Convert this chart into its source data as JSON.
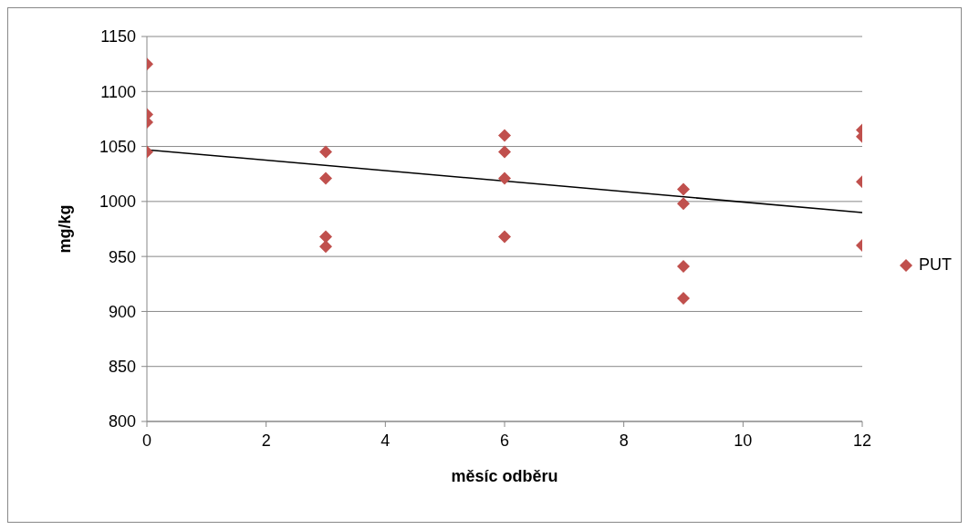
{
  "chart_data": {
    "type": "scatter",
    "xlabel": "měsíc odběru",
    "ylabel": "mg/kg",
    "marker": "diamond",
    "grid": "y",
    "legend": "right",
    "xlim": [
      0,
      12
    ],
    "xticks": [
      0,
      2,
      4,
      6,
      8,
      10,
      12
    ],
    "ylim": [
      800,
      1150
    ],
    "yticks": [
      800,
      850,
      900,
      950,
      1000,
      1050,
      1100,
      1150
    ],
    "series": [
      {
        "name": "PUT",
        "color": "#c0504d",
        "x": [
          0,
          0,
          0,
          0,
          3,
          3,
          3,
          3,
          6,
          6,
          6,
          6,
          9,
          9,
          9,
          9,
          12,
          12,
          12,
          12
        ],
        "values": [
          1125,
          1079,
          1072,
          1045,
          1045,
          1021,
          968,
          959,
          1060,
          1045,
          1021,
          968,
          1011,
          998,
          941,
          912,
          1065,
          1059,
          1018,
          960
        ]
      },
      {
        "type": "line",
        "color": "#000000",
        "marker": "none",
        "x": [
          0,
          12
        ],
        "values": [
          1047,
          990
        ]
      }
    ]
  }
}
